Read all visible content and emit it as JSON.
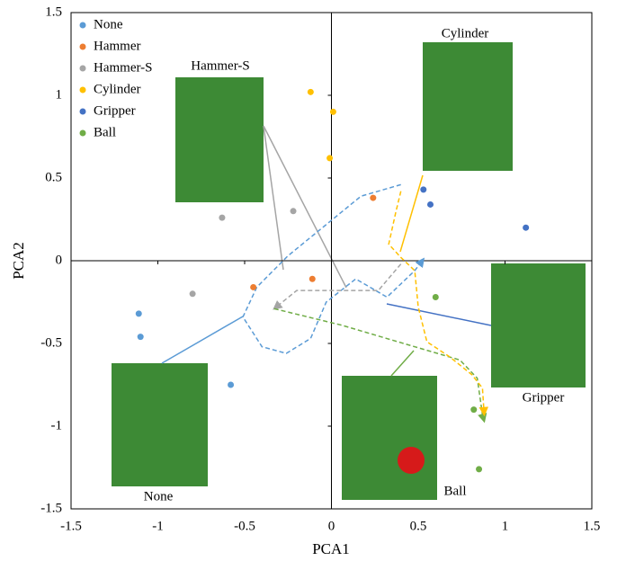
{
  "chart_data": {
    "type": "scatter",
    "x_label": "PCA1",
    "y_label": "PCA2",
    "xlim": [
      -1.5,
      1.5
    ],
    "ylim": [
      -1.5,
      1.5
    ],
    "xticks": [
      -1.5,
      -1,
      -0.5,
      0,
      0.5,
      1,
      1.5
    ],
    "yticks": [
      -1.5,
      -1,
      -0.5,
      0,
      0.5,
      1,
      1.5
    ],
    "grid": false,
    "legend": "top-left",
    "series": [
      {
        "name": "None",
        "color": "#5b9bd5",
        "x": [
          -1.11,
          -1.1,
          -0.58
        ],
        "values": [
          -0.32,
          -0.46,
          -0.75
        ]
      },
      {
        "name": "Hammer",
        "color": "#ed7d31",
        "x": [
          -0.45,
          -0.11,
          0.24
        ],
        "values": [
          -0.16,
          -0.11,
          0.38
        ]
      },
      {
        "name": "Hammer-S",
        "color": "#a5a5a5",
        "x": [
          -0.8,
          -0.63,
          -0.22
        ],
        "values": [
          -0.2,
          0.26,
          0.3
        ]
      },
      {
        "name": "Cylinder",
        "color": "#ffc000",
        "x": [
          -0.12,
          0.01,
          -0.01
        ],
        "values": [
          1.02,
          0.9,
          0.62
        ]
      },
      {
        "name": "Gripper",
        "color": "#4472c4",
        "x": [
          0.53,
          0.57,
          1.12
        ],
        "values": [
          0.43,
          0.34,
          0.2
        ]
      },
      {
        "name": "Ball",
        "color": "#70ad47",
        "x": [
          0.6,
          0.82,
          0.85
        ],
        "values": [
          -0.22,
          -0.9,
          -1.26
        ]
      }
    ],
    "trajectories": [
      {
        "color": "#5b9bd5",
        "x": [
          0.4,
          0.17,
          -0.04,
          -0.25,
          -0.43,
          -0.51,
          -0.4,
          -0.26,
          -0.12,
          -0.03,
          0.14,
          0.32,
          0.48,
          0.53
        ],
        "values": [
          0.46,
          0.39,
          0.21,
          0.03,
          -0.16,
          -0.34,
          -0.52,
          -0.56,
          -0.47,
          -0.25,
          -0.11,
          -0.22,
          -0.06,
          0.01
        ]
      },
      {
        "color": "#a5a5a5",
        "x": [
          0.4,
          0.27,
          0.06,
          -0.2,
          -0.33
        ],
        "values": [
          -0.02,
          -0.18,
          -0.18,
          -0.18,
          -0.29
        ]
      },
      {
        "color": "#70ad47",
        "x": [
          -0.33,
          0.06,
          0.48,
          0.74,
          0.84,
          0.87,
          0.88
        ],
        "values": [
          -0.29,
          -0.39,
          -0.52,
          -0.6,
          -0.71,
          -0.93,
          -0.97
        ]
      },
      {
        "color": "#ffc000",
        "x": [
          0.4,
          0.37,
          0.33,
          0.4,
          0.48,
          0.5,
          0.55,
          0.68,
          0.81,
          0.87,
          0.88
        ],
        "values": [
          0.42,
          0.29,
          0.1,
          0.02,
          -0.06,
          -0.28,
          -0.49,
          -0.58,
          -0.69,
          -0.77,
          -0.93
        ]
      }
    ],
    "annotations": [
      "Hammer-S",
      "Cylinder",
      "Gripper",
      "None",
      "Ball"
    ]
  }
}
